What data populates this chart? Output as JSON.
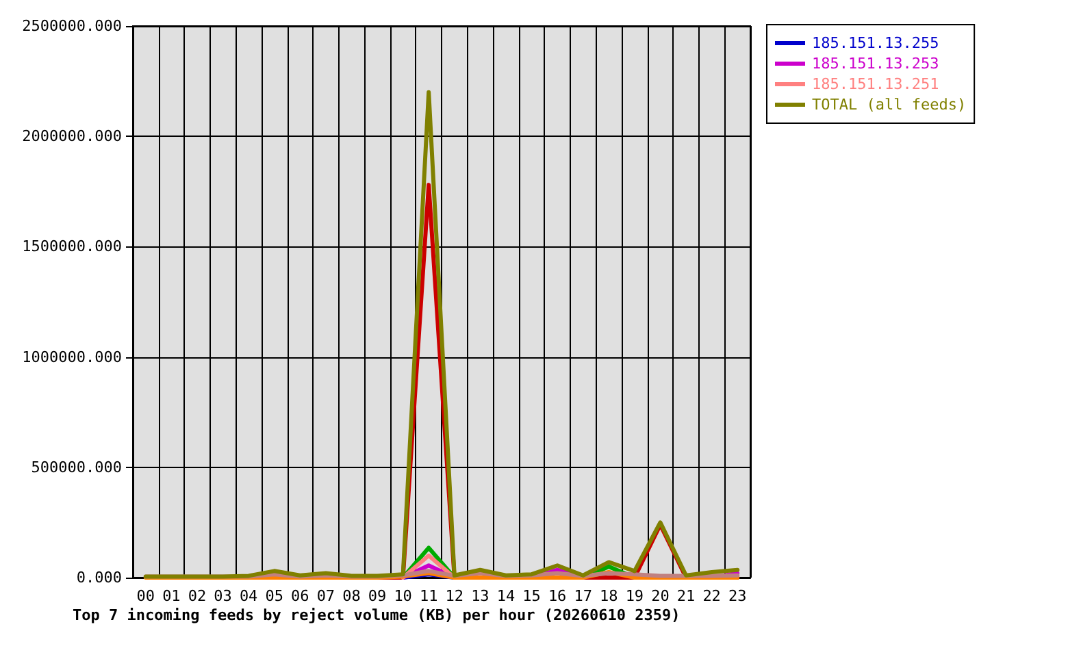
{
  "chart_data": {
    "type": "line",
    "title": "Top 7 incoming feeds by reject volume (KB) per hour (20260610 2359)",
    "categories": [
      "00",
      "01",
      "02",
      "03",
      "04",
      "05",
      "06",
      "07",
      "08",
      "09",
      "10",
      "11",
      "12",
      "13",
      "14",
      "15",
      "16",
      "17",
      "18",
      "19",
      "20",
      "21",
      "22",
      "23"
    ],
    "series": [
      {
        "color": "#cc0000",
        "values": [
          null,
          null,
          null,
          0,
          0,
          0,
          0,
          0,
          0,
          0,
          0,
          1780000,
          0,
          0,
          0,
          0,
          0,
          0,
          0,
          0,
          240000,
          0,
          0,
          0
        ]
      },
      {
        "color": "#00aa00",
        "values": [
          null,
          null,
          null,
          null,
          null,
          null,
          null,
          null,
          null,
          null,
          0,
          135000,
          0,
          null,
          null,
          null,
          null,
          0,
          50000,
          0,
          null,
          null,
          null,
          null
        ]
      },
      {
        "name": "185.151.13.255",
        "color": "#0000cc",
        "values": [
          null,
          null,
          null,
          null,
          null,
          null,
          null,
          null,
          null,
          null,
          0,
          15000,
          0,
          null,
          null,
          null,
          null,
          null,
          null,
          null,
          null,
          null,
          null,
          null
        ]
      },
      {
        "name": "185.151.13.253",
        "color": "#cc00cc",
        "values": [
          null,
          null,
          null,
          null,
          null,
          null,
          null,
          null,
          null,
          null,
          0,
          55000,
          0,
          null,
          null,
          0,
          35000,
          0,
          null,
          null,
          null,
          null,
          0,
          20000
        ]
      },
      {
        "name": "185.151.13.251",
        "color": "#ff8080",
        "values": [
          null,
          null,
          null,
          null,
          null,
          null,
          null,
          null,
          null,
          null,
          0,
          100000,
          0,
          null,
          null,
          null,
          null,
          null,
          null,
          null,
          null,
          null,
          null,
          null
        ]
      },
      {
        "color": "#ff8000",
        "values": [
          0,
          0,
          0,
          0,
          0,
          0,
          0,
          0,
          0,
          0,
          5000,
          20000,
          0,
          0,
          0,
          0,
          0,
          0,
          25000,
          0,
          0,
          0,
          0,
          0
        ]
      },
      {
        "color": "#c08080",
        "values": [
          5000,
          5000,
          5000,
          5000,
          5000,
          15000,
          5000,
          10000,
          5000,
          5000,
          10000,
          30000,
          8000,
          20000,
          8000,
          10000,
          20000,
          8000,
          20000,
          15000,
          8000,
          8000,
          8000,
          10000
        ]
      },
      {
        "name": "TOTAL (all feeds)",
        "color": "#808000",
        "values": [
          5000,
          5000,
          5000,
          5000,
          8000,
          30000,
          10000,
          20000,
          8000,
          8000,
          15000,
          2200000,
          10000,
          35000,
          10000,
          15000,
          55000,
          10000,
          70000,
          30000,
          250000,
          10000,
          25000,
          35000
        ]
      }
    ],
    "ylim": [
      0,
      2500000
    ],
    "yticks": [
      {
        "value": 0,
        "label": "0.000"
      },
      {
        "value": 500000,
        "label": "500000.000"
      },
      {
        "value": 1000000,
        "label": "1000000.000"
      },
      {
        "value": 1500000,
        "label": "1500000.000"
      },
      {
        "value": 2000000,
        "label": "2000000.000"
      },
      {
        "value": 2500000,
        "label": "2500000.000"
      }
    ],
    "grid": true,
    "legend": "top right",
    "marker": "none",
    "line_style": "solid"
  }
}
